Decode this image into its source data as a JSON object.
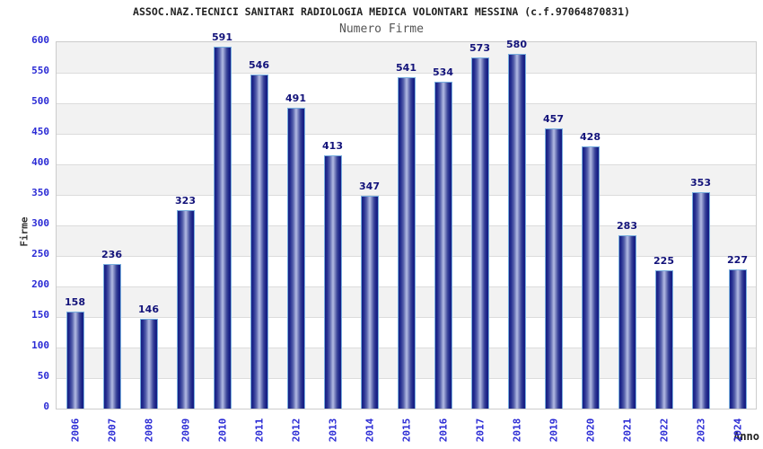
{
  "header": {
    "title": "ASSOC.NAZ.TECNICI SANITARI RADIOLOGIA MEDICA VOLONTARI MESSINA (c.f.97064870831)",
    "subtitle": "Numero Firme"
  },
  "chart_data": {
    "type": "bar",
    "title": "ASSOC.NAZ.TECNICI SANITARI RADIOLOGIA MEDICA VOLONTARI MESSINA (c.f.97064870831)",
    "subtitle": "Numero Firme",
    "categories": [
      "2006",
      "2007",
      "2008",
      "2009",
      "2010",
      "2011",
      "2012",
      "2013",
      "2014",
      "2015",
      "2016",
      "2017",
      "2018",
      "2019",
      "2020",
      "2021",
      "2022",
      "2023",
      "2024"
    ],
    "values": [
      158,
      236,
      146,
      323,
      591,
      546,
      491,
      413,
      347,
      541,
      534,
      573,
      580,
      457,
      428,
      283,
      225,
      353,
      227
    ],
    "xlabel": "Anno",
    "ylabel": "Firme",
    "ylim": [
      0,
      600
    ],
    "ytick_step": 50,
    "yticks": [
      0,
      50,
      100,
      150,
      200,
      250,
      300,
      350,
      400,
      450,
      500,
      550,
      600
    ],
    "grid": true,
    "legend_position": "none",
    "bands_alternating": true
  },
  "colors": {
    "bar_dark": "#161f84",
    "bar_light": "#b3bbe4",
    "bar_outline": "#78aede",
    "value_label": "#13137a",
    "tick_label": "#2b2bd5",
    "band_gray": "#f2f2f2",
    "band_white": "#ffffff",
    "grid_line": "#dcdcdc",
    "plot_border": "#cccccc",
    "title_color": "#222222",
    "subtitle_color": "#555555",
    "axis_label_color": "#333333"
  }
}
